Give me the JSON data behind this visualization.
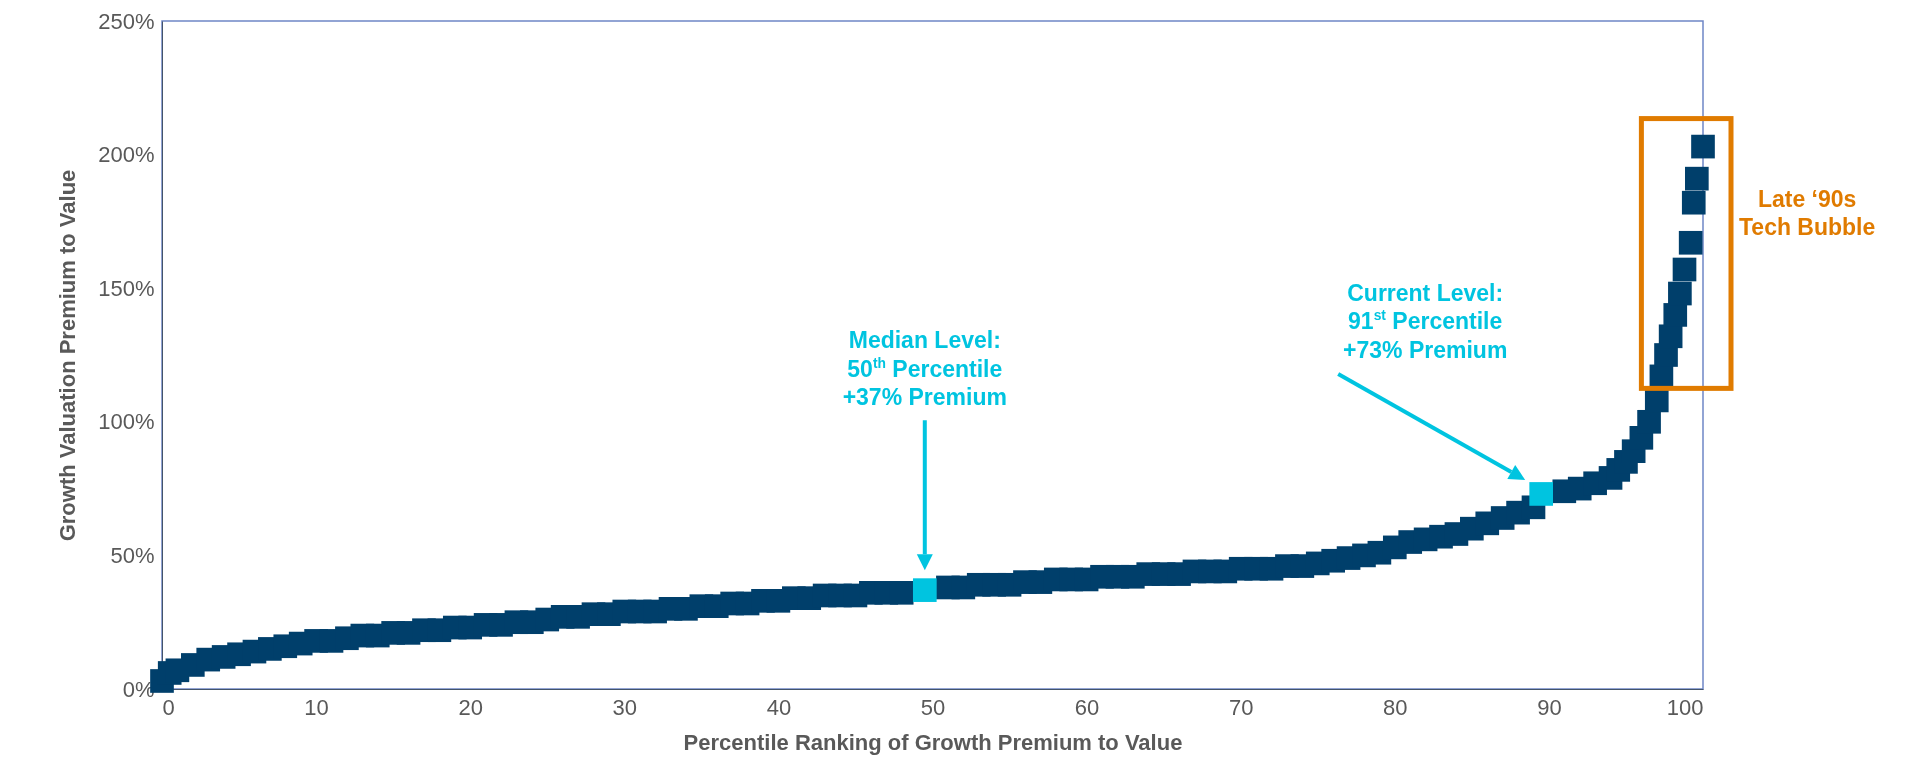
{
  "chart_data": {
    "type": "scatter",
    "xlabel": "Percentile Ranking of Growth Premium to Value",
    "ylabel": "Growth Valuation Premium to Value",
    "marker": "square",
    "grid": false,
    "xlim": [
      0,
      100
    ],
    "xticks": [
      0,
      10,
      20,
      30,
      40,
      50,
      60,
      70,
      80,
      90,
      100
    ],
    "ylim": [
      0,
      250
    ],
    "yticks": [
      {
        "value": 0,
        "label": "0%"
      },
      {
        "value": 50,
        "label": "50%"
      },
      {
        "value": 100,
        "label": "100%"
      },
      {
        "value": 150,
        "label": "150%"
      },
      {
        "value": 200,
        "label": "200%"
      },
      {
        "value": 250,
        "label": "250%"
      }
    ],
    "series": [
      {
        "color": "#003f6b",
        "x": [
          0,
          0.5,
          1,
          2,
          3,
          4,
          5,
          6,
          7,
          8,
          9,
          10,
          11,
          12,
          13,
          14,
          15,
          16,
          17,
          18,
          19,
          20,
          21,
          22,
          23,
          24,
          25,
          26,
          27,
          28,
          29,
          30,
          31,
          32,
          33,
          34,
          35,
          36,
          37,
          38,
          39,
          40,
          41,
          42,
          43,
          44,
          45,
          46,
          47,
          48,
          49,
          50,
          51,
          52,
          53,
          54,
          55,
          56,
          57,
          58,
          59,
          60,
          61,
          62,
          63,
          64,
          65,
          66,
          67,
          68,
          69,
          70,
          71,
          72,
          73,
          74,
          75,
          76,
          77,
          78,
          79,
          80,
          81,
          82,
          83,
          84,
          85,
          86,
          87,
          88,
          89,
          90,
          91,
          92,
          93,
          94,
          94.5,
          95,
          95.5,
          96,
          96.5,
          97
        ],
        "values": [
          3,
          6,
          7,
          9,
          11,
          12,
          13,
          14,
          15,
          16,
          17,
          18,
          18,
          19,
          20,
          20,
          21,
          21,
          22,
          22,
          23,
          23,
          24,
          24,
          25,
          25,
          26,
          27,
          27,
          28,
          28,
          29,
          29,
          29,
          30,
          30,
          31,
          31,
          32,
          32,
          33,
          33,
          34,
          34,
          35,
          35,
          35,
          36,
          36,
          36,
          null,
          null,
          38,
          38,
          39,
          39,
          39,
          40,
          40,
          41,
          41,
          41,
          42,
          42,
          42,
          43,
          43,
          43,
          44,
          44,
          44,
          45,
          45,
          45,
          46,
          46,
          47,
          48,
          49,
          50,
          51,
          53,
          55,
          56,
          57,
          58,
          60,
          62,
          64,
          66,
          68,
          null,
          74,
          75,
          77,
          79,
          82,
          85,
          89,
          94,
          100,
          108
        ]
      },
      {
        "color": "#003f6b",
        "x": [
          97.3,
          97.6,
          97.9,
          98.2,
          98.5,
          98.8,
          99.2,
          99.4,
          99.6,
          100
        ],
        "values": [
          117,
          125,
          132,
          140,
          148,
          157,
          167,
          182,
          191,
          203
        ]
      },
      {
        "color": "#00c4e0",
        "x": [
          49.5,
          89.5
        ],
        "values": [
          37,
          73
        ]
      }
    ],
    "annotations": [
      "Median Level:\n50$^{th}$ Percentile\n+37% Premium",
      "Current Level:\n91$^{st}$ Percentile\n+73% Premium",
      "Late ‘90s\nTech Bubble"
    ]
  }
}
